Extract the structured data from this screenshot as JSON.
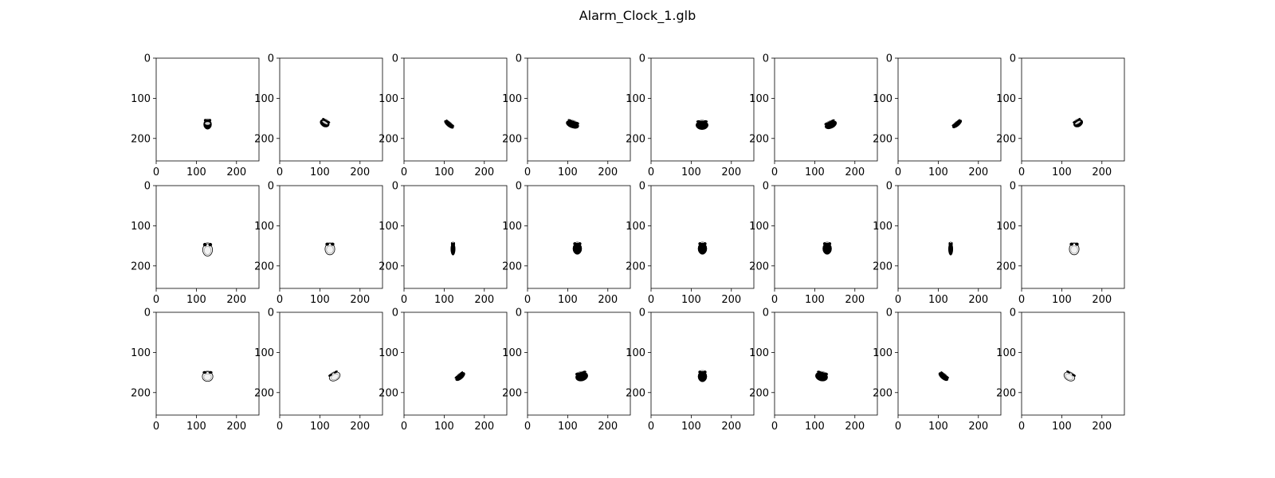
{
  "figure": {
    "title": "Alarm_Clock_1.glb"
  },
  "chart_data": {
    "type": "image_grid",
    "title": "Alarm_Clock_1.glb",
    "rows": 3,
    "cols": 8,
    "image_size": [
      256,
      256
    ],
    "xlim": [
      0,
      256
    ],
    "ylim": [
      256,
      0
    ],
    "xticks": [
      0,
      100,
      200
    ],
    "yticks": [
      0,
      100,
      200
    ],
    "xtick_labels": [
      "0",
      "100",
      "200"
    ],
    "ytick_labels": [
      "0",
      "100",
      "200"
    ],
    "colormap": "gray",
    "panels": [
      {
        "shape": "clock-front-dark",
        "cx": 128,
        "cy": 165,
        "rx": 9,
        "ry": 11,
        "rot": 0
      },
      {
        "shape": "clock-tilt",
        "cx": 112,
        "cy": 162,
        "rx": 11,
        "ry": 8,
        "rot": 30
      },
      {
        "shape": "clock-side-dark",
        "cx": 112,
        "cy": 165,
        "rx": 13,
        "ry": 5,
        "rot": 40
      },
      {
        "shape": "clock-back-dark",
        "cx": 112,
        "cy": 165,
        "rx": 15,
        "ry": 8,
        "rot": 20
      },
      {
        "shape": "clock-back-dark",
        "cx": 127,
        "cy": 167,
        "rx": 14,
        "ry": 10,
        "rot": 0
      },
      {
        "shape": "clock-back-dark",
        "cx": 140,
        "cy": 166,
        "rx": 14,
        "ry": 8,
        "rot": -25
      },
      {
        "shape": "clock-side-dark",
        "cx": 147,
        "cy": 164,
        "rx": 13,
        "ry": 5,
        "rot": -40
      },
      {
        "shape": "clock-tilt",
        "cx": 141,
        "cy": 162,
        "rx": 11,
        "ry": 8,
        "rot": -30
      },
      {
        "shape": "clock-front-light",
        "cx": 128,
        "cy": 160,
        "rx": 11,
        "ry": 14,
        "rot": 0
      },
      {
        "shape": "clock-tilt-light",
        "cx": 125,
        "cy": 158,
        "rx": 11,
        "ry": 13,
        "rot": 0
      },
      {
        "shape": "clock-side-dark",
        "cx": 122,
        "cy": 158,
        "rx": 5,
        "ry": 14,
        "rot": 0
      },
      {
        "shape": "clock-back-dark",
        "cx": 124,
        "cy": 157,
        "rx": 10,
        "ry": 13,
        "rot": 0
      },
      {
        "shape": "clock-back-dark",
        "cx": 128,
        "cy": 157,
        "rx": 10,
        "ry": 13,
        "rot": 0
      },
      {
        "shape": "clock-back-dark",
        "cx": 131,
        "cy": 157,
        "rx": 10,
        "ry": 13,
        "rot": 0
      },
      {
        "shape": "clock-side-dark",
        "cx": 131,
        "cy": 158,
        "rx": 5,
        "ry": 14,
        "rot": 0
      },
      {
        "shape": "clock-tilt-light",
        "cx": 131,
        "cy": 158,
        "rx": 11,
        "ry": 13,
        "rot": 0
      },
      {
        "shape": "clock-front-light",
        "cx": 128,
        "cy": 160,
        "rx": 12,
        "ry": 11,
        "rot": 0
      },
      {
        "shape": "clock-tilt-light",
        "cx": 137,
        "cy": 160,
        "rx": 13,
        "ry": 9,
        "rot": -30
      },
      {
        "shape": "clock-side-dark",
        "cx": 140,
        "cy": 160,
        "rx": 13,
        "ry": 6,
        "rot": -40
      },
      {
        "shape": "clock-back-dark",
        "cx": 135,
        "cy": 160,
        "rx": 14,
        "ry": 10,
        "rot": -15
      },
      {
        "shape": "clock-back-dark",
        "cx": 128,
        "cy": 160,
        "rx": 10,
        "ry": 12,
        "rot": 0
      },
      {
        "shape": "clock-back-dark",
        "cx": 117,
        "cy": 160,
        "rx": 14,
        "ry": 10,
        "rot": 15
      },
      {
        "shape": "clock-side-dark",
        "cx": 113,
        "cy": 160,
        "rx": 13,
        "ry": 6,
        "rot": 40
      },
      {
        "shape": "clock-tilt-light",
        "cx": 119,
        "cy": 160,
        "rx": 13,
        "ry": 9,
        "rot": 30
      }
    ]
  }
}
